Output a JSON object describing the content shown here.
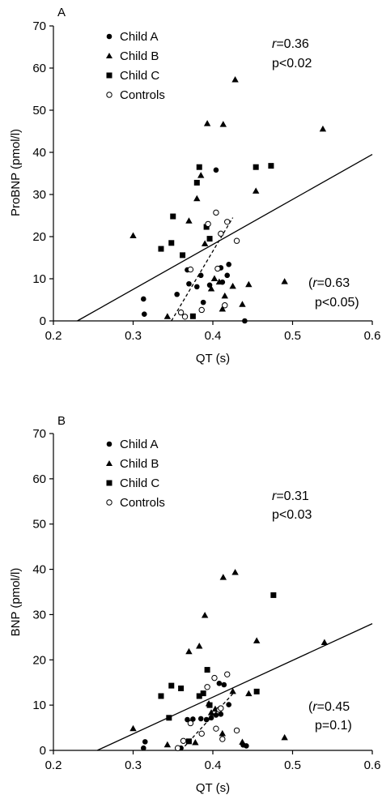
{
  "chart_data": [
    {
      "type": "scatter",
      "panel_label": "A",
      "xlabel": "QT (s)",
      "ylabel": "ProBNP (pmol/l)",
      "xlim": [
        0.2,
        0.6
      ],
      "ylim": [
        0,
        70
      ],
      "xticks": [
        0.2,
        0.3,
        0.4,
        0.5,
        0.6
      ],
      "xtick_labels": [
        "0.2",
        "0.3",
        "0.4",
        "0.5",
        "0.6"
      ],
      "yticks": [
        0,
        10,
        20,
        30,
        40,
        50,
        60,
        70
      ],
      "ytick_labels": [
        "0",
        "10",
        "20",
        "30",
        "40",
        "50",
        "60",
        "70"
      ],
      "legend_placement": "top-left",
      "annotation_main": {
        "r": "r",
        "r_value": "=0.36",
        "p": "p<0.02"
      },
      "annotation_controls": {
        "open": "(",
        "r": "r",
        "r_value": "=0.63",
        "p": "p<0.05)"
      },
      "series": [
        {
          "name": "Child A",
          "marker": "filled-circle",
          "points": [
            [
              0.313,
              5.2
            ],
            [
              0.314,
              1.6
            ],
            [
              0.355,
              6.3
            ],
            [
              0.368,
              12.1
            ],
            [
              0.37,
              8.8
            ],
            [
              0.38,
              8.1
            ],
            [
              0.385,
              10.8
            ],
            [
              0.388,
              4.4
            ],
            [
              0.396,
              8.5
            ],
            [
              0.404,
              35.8
            ],
            [
              0.41,
              12.6
            ],
            [
              0.412,
              9.2
            ],
            [
              0.42,
              13.4
            ],
            [
              0.418,
              10.8
            ],
            [
              0.44,
              0
            ]
          ]
        },
        {
          "name": "Child B",
          "marker": "filled-triangle",
          "points": [
            [
              0.3,
              20.2
            ],
            [
              0.343,
              1
            ],
            [
              0.37,
              23.7
            ],
            [
              0.38,
              29
            ],
            [
              0.385,
              34.5
            ],
            [
              0.393,
              46.8
            ],
            [
              0.39,
              18.3
            ],
            [
              0.398,
              7.6
            ],
            [
              0.402,
              10
            ],
            [
              0.408,
              9.2
            ],
            [
              0.413,
              46.6
            ],
            [
              0.412,
              2.8
            ],
            [
              0.415,
              5.9
            ],
            [
              0.428,
              57.2
            ],
            [
              0.425,
              8.2
            ],
            [
              0.437,
              3.9
            ],
            [
              0.445,
              8.6
            ],
            [
              0.454,
              30.8
            ],
            [
              0.49,
              9.3
            ],
            [
              0.538,
              45.5
            ]
          ]
        },
        {
          "name": "Child C",
          "marker": "filled-square",
          "points": [
            [
              0.335,
              17.1
            ],
            [
              0.348,
              18.5
            ],
            [
              0.35,
              24.8
            ],
            [
              0.362,
              15.6
            ],
            [
              0.375,
              1.1
            ],
            [
              0.38,
              32.8
            ],
            [
              0.383,
              36.5
            ],
            [
              0.392,
              22.3
            ],
            [
              0.396,
              19.5
            ],
            [
              0.454,
              36.5
            ],
            [
              0.473,
              36.8
            ]
          ]
        },
        {
          "name": "Controls",
          "marker": "open-circle",
          "points": [
            [
              0.36,
              2
            ],
            [
              0.365,
              1
            ],
            [
              0.372,
              12.2
            ],
            [
              0.386,
              2.6
            ],
            [
              0.394,
              23
            ],
            [
              0.404,
              25.7
            ],
            [
              0.406,
              12.4
            ],
            [
              0.41,
              20.7
            ],
            [
              0.415,
              3.7
            ],
            [
              0.418,
              23.5
            ],
            [
              0.43,
              19
            ]
          ]
        }
      ],
      "fit_lines": [
        {
          "style": "solid",
          "x": [
            0.23,
            0.6
          ],
          "y": [
            0,
            39.5
          ]
        },
        {
          "style": "dashed",
          "x": [
            0.348,
            0.425
          ],
          "y": [
            0,
            24.5
          ]
        }
      ]
    },
    {
      "type": "scatter",
      "panel_label": "B",
      "xlabel": "QT (s)",
      "ylabel": "BNP (pmol/l)",
      "xlim": [
        0.2,
        0.6
      ],
      "ylim": [
        0,
        70
      ],
      "xticks": [
        0.2,
        0.3,
        0.4,
        0.5,
        0.6
      ],
      "xtick_labels": [
        "0.2",
        "0.3",
        "0.4",
        "0.5",
        "0.6"
      ],
      "yticks": [
        0,
        10,
        20,
        30,
        40,
        50,
        60,
        70
      ],
      "ytick_labels": [
        "0",
        "10",
        "20",
        "30",
        "40",
        "50",
        "60",
        "70"
      ],
      "legend_placement": "top-left",
      "annotation_main": {
        "r": "r",
        "r_value": "=0.31",
        "p": "p<0.03"
      },
      "annotation_controls": {
        "open": "(",
        "r": "r",
        "r_value": "=0.45",
        "p": "p=0.1)"
      },
      "series": [
        {
          "name": "Child A",
          "marker": "filled-circle",
          "points": [
            [
              0.313,
              0.5
            ],
            [
              0.315,
              1.9
            ],
            [
              0.36,
              0.5
            ],
            [
              0.368,
              6.8
            ],
            [
              0.375,
              6.9
            ],
            [
              0.385,
              7
            ],
            [
              0.392,
              6.8
            ],
            [
              0.398,
              7.2
            ],
            [
              0.404,
              7.8
            ],
            [
              0.408,
              14.8
            ],
            [
              0.41,
              8
            ],
            [
              0.414,
              14.5
            ],
            [
              0.42,
              10.1
            ],
            [
              0.438,
              1.2
            ],
            [
              0.442,
              1
            ]
          ]
        },
        {
          "name": "Child B",
          "marker": "filled-triangle",
          "points": [
            [
              0.3,
              4.8
            ],
            [
              0.343,
              1.2
            ],
            [
              0.37,
              21.8
            ],
            [
              0.378,
              1.7
            ],
            [
              0.383,
              23
            ],
            [
              0.39,
              29.8
            ],
            [
              0.395,
              10.3
            ],
            [
              0.398,
              8.3
            ],
            [
              0.403,
              9.1
            ],
            [
              0.412,
              3.7
            ],
            [
              0.413,
              38.2
            ],
            [
              0.428,
              39.3
            ],
            [
              0.425,
              13
            ],
            [
              0.437,
              1.8
            ],
            [
              0.445,
              12.5
            ],
            [
              0.455,
              24.2
            ],
            [
              0.49,
              2.8
            ],
            [
              0.54,
              23.8
            ]
          ]
        },
        {
          "name": "Child C",
          "marker": "filled-square",
          "points": [
            [
              0.335,
              12
            ],
            [
              0.345,
              7.2
            ],
            [
              0.348,
              14.3
            ],
            [
              0.36,
              13.7
            ],
            [
              0.37,
              2
            ],
            [
              0.383,
              12
            ],
            [
              0.388,
              12.6
            ],
            [
              0.393,
              17.8
            ],
            [
              0.396,
              10
            ],
            [
              0.455,
              13
            ],
            [
              0.476,
              34.3
            ]
          ]
        },
        {
          "name": "Controls",
          "marker": "open-circle",
          "points": [
            [
              0.356,
              0.5
            ],
            [
              0.363,
              2.1
            ],
            [
              0.372,
              6
            ],
            [
              0.386,
              3.7
            ],
            [
              0.393,
              14
            ],
            [
              0.402,
              16
            ],
            [
              0.404,
              4.8
            ],
            [
              0.408,
              9
            ],
            [
              0.41,
              9.3
            ],
            [
              0.412,
              2.5
            ],
            [
              0.418,
              16.8
            ],
            [
              0.43,
              4.4
            ]
          ]
        }
      ],
      "fit_lines": [
        {
          "style": "solid",
          "x": [
            0.255,
            0.6
          ],
          "y": [
            0,
            28
          ]
        },
        {
          "style": "dashed",
          "x": [
            0.36,
            0.425
          ],
          "y": [
            0,
            12.5
          ]
        }
      ]
    }
  ]
}
